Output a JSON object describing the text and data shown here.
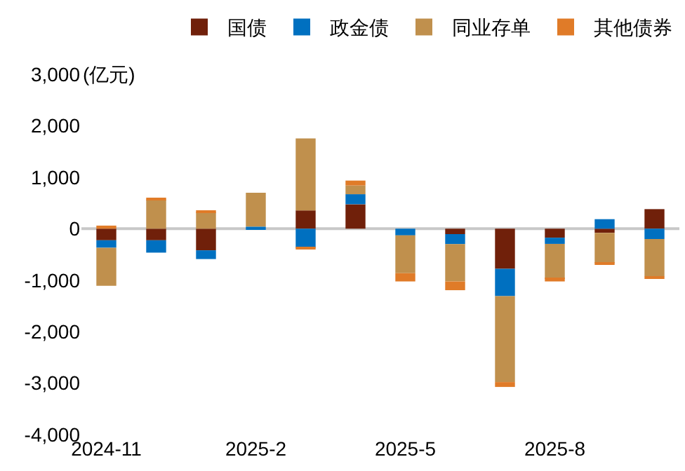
{
  "chart_data": {
    "type": "bar",
    "stacked": true,
    "ylabel": "(亿元)",
    "categories": [
      "2024-11",
      null,
      null,
      "2025-2",
      null,
      null,
      "2025-5",
      null,
      null,
      "2025-8",
      null,
      null
    ],
    "series": [
      {
        "name": "国债",
        "color": "#70200a",
        "values": [
          -225,
          -225,
          -420,
          null,
          355,
          475,
          null,
          -105,
          -780,
          -175,
          -80,
          380
        ]
      },
      {
        "name": "政金债",
        "color": "#0070c0",
        "values": [
          -145,
          -240,
          -170,
          40,
          -370,
          195,
          -130,
          -195,
          -530,
          -120,
          185,
          -200
        ]
      },
      {
        "name": "同业存单",
        "color": "#c0904d",
        "values": [
          -740,
          565,
          320,
          660,
          1400,
          170,
          -735,
          -725,
          -1670,
          -680,
          -590,
          -725
        ]
      },
      {
        "name": "其他债券",
        "color": "#e07b28",
        "values": [
          60,
          25,
          15,
          null,
          -15,
          95,
          -160,
          -170,
          -95,
          -50,
          -15,
          -25
        ]
      }
    ],
    "ylim": [
      -4000,
      3000
    ],
    "yticks": [
      {
        "value": -4000,
        "label": "-4,000"
      },
      {
        "value": -3000,
        "label": "-3,000"
      },
      {
        "value": -2000,
        "label": "-2,000"
      },
      {
        "value": -1000,
        "label": "-1,000"
      },
      0,
      {
        "value": 1000,
        "label": "1,000"
      },
      {
        "value": 2000,
        "label": "2,000"
      },
      {
        "value": 3000,
        "label": "3,000"
      }
    ],
    "ref_lines": [
      {
        "axis": "y",
        "value": 0,
        "color": "#c8c8c8"
      }
    ],
    "grid": false,
    "legend": "top"
  }
}
